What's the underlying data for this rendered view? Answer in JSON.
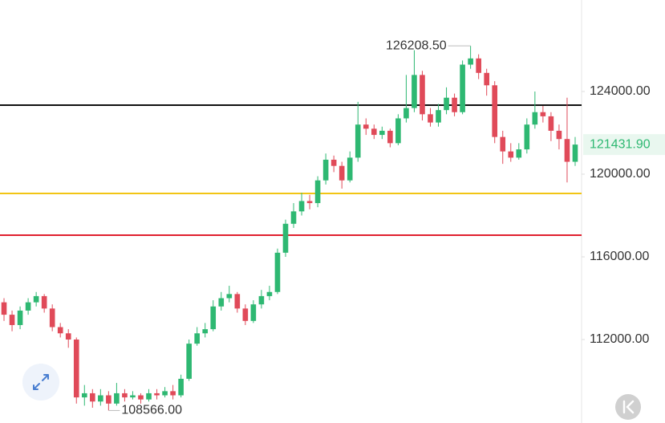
{
  "chart_data": {
    "type": "candlestick",
    "up_color": "#2eb872",
    "down_color": "#e04a59",
    "ylim": [
      107961,
      128427
    ],
    "yticks": [
      {
        "value": 112000,
        "label": "112000.00"
      },
      {
        "value": 116000,
        "label": "116000.00"
      },
      {
        "value": 120000,
        "label": "120000.00"
      },
      {
        "value": 124000,
        "label": "124000.00"
      }
    ],
    "open": [
      113800,
      113200,
      112700,
      113400,
      113800,
      114100,
      113500,
      112600,
      112300,
      112000,
      109200,
      109400,
      109000,
      109300,
      108900,
      109400,
      109200,
      109300,
      109100,
      109400,
      109300,
      109500,
      109300,
      110100,
      111800,
      112300,
      112500,
      113600,
      114000,
      114200,
      113500,
      112900,
      113700,
      114100,
      114300,
      116200,
      117600,
      118200,
      118700,
      118600,
      119700,
      120700,
      120400,
      119700,
      120800,
      122400,
      122200,
      121900,
      122100,
      121500,
      122700,
      123200,
      124800,
      122900,
      122500,
      123100,
      123700,
      123000,
      125300,
      125600,
      124900,
      124300,
      121800,
      121100,
      120800,
      121200,
      122400,
      123000,
      122800,
      122100,
      121700,
      120600
    ],
    "high": [
      114000,
      113400,
      113600,
      114000,
      114300,
      114200,
      113700,
      112800,
      112500,
      112100,
      109800,
      109600,
      109600,
      109500,
      109900,
      109600,
      109500,
      109400,
      109600,
      109600,
      109700,
      109800,
      110300,
      112000,
      112600,
      112800,
      113900,
      114300,
      114600,
      114300,
      113700,
      113900,
      114400,
      114600,
      116400,
      117800,
      118600,
      119100,
      119000,
      119900,
      121000,
      120900,
      120600,
      121100,
      123500,
      122700,
      122400,
      122300,
      122200,
      122900,
      124800,
      126000,
      125000,
      123200,
      123400,
      124200,
      123900,
      125500,
      126208.5,
      125800,
      125100,
      124500,
      122100,
      121500,
      121500,
      122700,
      124000,
      123300,
      123000,
      122400,
      123700,
      121800
    ],
    "low": [
      112900,
      112400,
      112500,
      113200,
      113600,
      113300,
      112400,
      112100,
      111600,
      108900,
      108800,
      108700,
      108800,
      108566,
      108800,
      109000,
      109100,
      108900,
      109000,
      109100,
      109200,
      109100,
      109200,
      110000,
      111700,
      112100,
      112400,
      113400,
      113800,
      113300,
      112700,
      112800,
      113500,
      113900,
      114200,
      116000,
      117400,
      118000,
      118300,
      118400,
      119500,
      120100,
      119300,
      119600,
      120600,
      121900,
      121700,
      121700,
      121300,
      121400,
      122500,
      123000,
      122600,
      122300,
      122300,
      122900,
      122800,
      122900,
      125100,
      124600,
      123800,
      121500,
      120500,
      120600,
      120700,
      121000,
      122200,
      122500,
      121600,
      121200,
      119600,
      120400
    ],
    "close": [
      113200,
      112700,
      113400,
      113800,
      114100,
      113500,
      112600,
      112300,
      112000,
      109200,
      109400,
      109000,
      109300,
      108900,
      109400,
      109200,
      109300,
      109100,
      109400,
      109300,
      109500,
      109300,
      110100,
      111800,
      112300,
      112500,
      113600,
      114000,
      114200,
      113500,
      112900,
      113700,
      114100,
      114300,
      116200,
      117600,
      118200,
      118700,
      118600,
      119700,
      120700,
      120400,
      119700,
      120800,
      122400,
      122200,
      121900,
      122100,
      121500,
      122700,
      123200,
      124800,
      122900,
      122500,
      123100,
      123700,
      123000,
      125300,
      125600,
      124900,
      124300,
      121800,
      121100,
      120800,
      121200,
      122400,
      123000,
      122800,
      122100,
      121700,
      120600,
      121431.9
    ],
    "hlines": [
      {
        "value": 123340,
        "color": "#111111"
      },
      {
        "value": 119068,
        "color": "#f2c515"
      },
      {
        "value": 117049,
        "color": "#e0202e"
      }
    ],
    "max_label": {
      "value": 126208.5,
      "label": "126208.50"
    },
    "min_label": {
      "value": 108566,
      "label": "108566.00"
    },
    "last_price": {
      "value": 121431.9,
      "label": "121431.90"
    }
  }
}
